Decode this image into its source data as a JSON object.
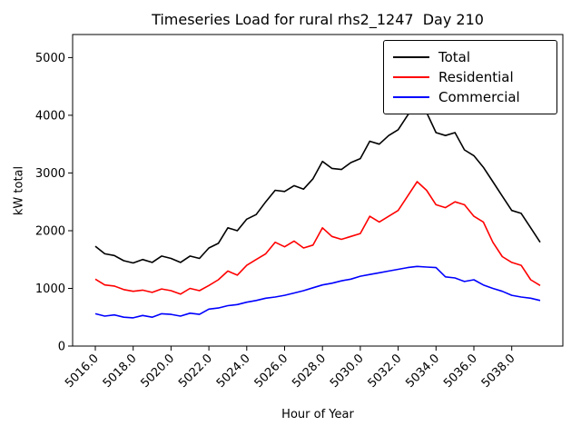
{
  "figure": {
    "title": "Timeseries Load for rural rhs2_1247  Day 210",
    "xlabel": "Hour of Year",
    "ylabel": "kW total"
  },
  "chart_data": {
    "type": "line",
    "title": "Timeseries Load for rural rhs2_1247  Day 210",
    "xlabel": "Hour of Year",
    "ylabel": "kW total",
    "grid": false,
    "legend_position": "upper right",
    "xlim": [
      5014.8,
      5040.7
    ],
    "ylim": [
      0,
      5400
    ],
    "yticks": [
      0,
      1000,
      2000,
      3000,
      4000,
      5000
    ],
    "xticks": [
      5016,
      5018,
      5020,
      5022,
      5024,
      5026,
      5028,
      5030,
      5032,
      5034,
      5036,
      5038
    ],
    "xtick_labels": [
      "5016.0",
      "5018.0",
      "5020.0",
      "5022.0",
      "5024.0",
      "5026.0",
      "5028.0",
      "5030.0",
      "5032.0",
      "5034.0",
      "5036.0",
      "5038.0"
    ],
    "x": [
      5016.0,
      5016.5,
      5017.0,
      5017.5,
      5018.0,
      5018.5,
      5019.0,
      5019.5,
      5020.0,
      5020.5,
      5021.0,
      5021.5,
      5022.0,
      5022.5,
      5023.0,
      5023.5,
      5024.0,
      5024.5,
      5025.0,
      5025.5,
      5026.0,
      5026.5,
      5027.0,
      5027.5,
      5028.0,
      5028.5,
      5029.0,
      5029.5,
      5030.0,
      5030.5,
      5031.0,
      5031.5,
      5032.0,
      5032.5,
      5033.0,
      5033.5,
      5034.0,
      5034.5,
      5035.0,
      5035.5,
      5036.0,
      5036.5,
      5037.0,
      5037.5,
      5038.0,
      5038.5,
      5039.0,
      5039.5
    ],
    "series": [
      {
        "name": "Total",
        "color": "#000000",
        "values": [
          1730,
          1600,
          1570,
          1480,
          1440,
          1500,
          1450,
          1560,
          1520,
          1450,
          1560,
          1520,
          1700,
          1780,
          2050,
          2000,
          2200,
          2280,
          2500,
          2700,
          2680,
          2780,
          2720,
          2900,
          3200,
          3080,
          3060,
          3180,
          3250,
          3550,
          3500,
          3650,
          3750,
          4000,
          4200,
          4050,
          3700,
          3650,
          3700,
          3400,
          3300,
          3100,
          2850,
          2600,
          2350,
          2300,
          2050,
          1800
        ]
      },
      {
        "name": "Residential",
        "color": "#ff0000",
        "values": [
          1160,
          1060,
          1040,
          980,
          950,
          970,
          930,
          990,
          960,
          900,
          1000,
          960,
          1050,
          1150,
          1300,
          1230,
          1400,
          1500,
          1600,
          1800,
          1720,
          1820,
          1700,
          1750,
          2050,
          1900,
          1850,
          1900,
          1950,
          2250,
          2150,
          2250,
          2350,
          2600,
          2850,
          2700,
          2450,
          2400,
          2500,
          2450,
          2250,
          2150,
          1800,
          1550,
          1450,
          1400,
          1150,
          1050
        ]
      },
      {
        "name": "Commercial",
        "color": "#0000ff",
        "values": [
          560,
          520,
          540,
          500,
          490,
          530,
          500,
          560,
          550,
          520,
          570,
          550,
          640,
          660,
          700,
          720,
          760,
          790,
          830,
          850,
          880,
          920,
          960,
          1010,
          1060,
          1090,
          1130,
          1160,
          1210,
          1240,
          1270,
          1300,
          1330,
          1360,
          1380,
          1370,
          1360,
          1200,
          1180,
          1120,
          1150,
          1060,
          1000,
          950,
          880,
          850,
          830,
          790
        ]
      }
    ]
  }
}
